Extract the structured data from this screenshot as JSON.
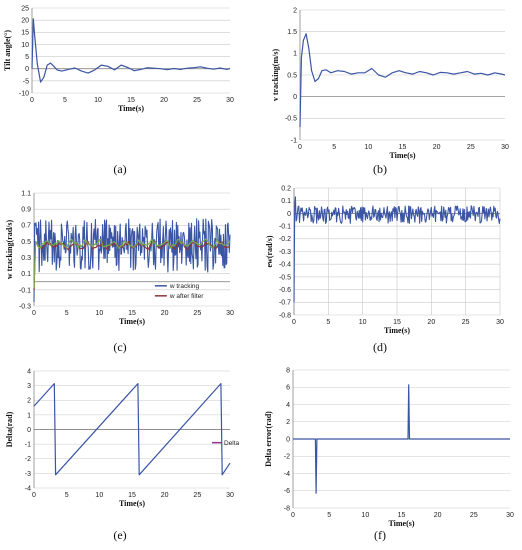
{
  "chart_data": [
    {
      "id": "a",
      "type": "line",
      "caption": "(a)",
      "xlabel": "Time(s)",
      "ylabel": "Tilt angle(°)",
      "xlim": [
        0,
        30
      ],
      "ylim": [
        -10,
        25
      ],
      "xticks": [
        0,
        5,
        10,
        15,
        20,
        25,
        30
      ],
      "yticks": [
        -10,
        -5,
        0,
        5,
        10,
        15,
        20,
        25
      ],
      "grid": "horizontal",
      "series": [
        {
          "color": "#3a55a4",
          "x": [
            0,
            0.2,
            0.4,
            0.8,
            1.3,
            1.8,
            2.3,
            2.8,
            3.3,
            3.8,
            4.5,
            5.5,
            6.5,
            7.5,
            8.5,
            9.5,
            10.5,
            11.5,
            12.5,
            13.5,
            14.5,
            15.5,
            16.5,
            17.5,
            18.5,
            19.5,
            20.5,
            21.5,
            22.5,
            23.5,
            24.5,
            25.5,
            26.5,
            27.5,
            28.5,
            29.5,
            30
          ],
          "y": [
            0,
            20.5,
            14,
            2,
            -5.5,
            -3.5,
            1.5,
            2.3,
            1,
            -0.5,
            -1,
            -0.3,
            0.3,
            -1,
            -1.8,
            -0.5,
            1.5,
            1,
            -0.5,
            1.5,
            0.5,
            -0.8,
            -0.3,
            0.4,
            0.2,
            0,
            -0.4,
            0.1,
            -0.3,
            0.2,
            0.4,
            0.8,
            0.2,
            -0.2,
            0.3,
            -0.3,
            0.1
          ]
        }
      ]
    },
    {
      "id": "b",
      "type": "line",
      "caption": "(b)",
      "xlabel": "Time(s)",
      "ylabel": "v tracking(m/s)",
      "xlim": [
        0,
        30
      ],
      "ylim": [
        -1,
        2
      ],
      "xticks": [
        0,
        5,
        10,
        15,
        20,
        25,
        30
      ],
      "yticks": [
        -1,
        -0.5,
        0,
        0.5,
        1,
        1.5,
        2
      ],
      "grid": "horizontal",
      "series": [
        {
          "color": "#3a55a4",
          "x": [
            0,
            0.2,
            0.5,
            0.9,
            1.3,
            1.7,
            2.2,
            2.7,
            3.2,
            3.8,
            4.5,
            5.5,
            6.5,
            7.5,
            8.5,
            9.5,
            10.5,
            11.5,
            12.5,
            13.5,
            14.5,
            15.5,
            16.5,
            17.5,
            18.5,
            19.5,
            20.5,
            21.5,
            22.5,
            23.5,
            24.5,
            25.5,
            26.5,
            27.5,
            28.5,
            29.5,
            30
          ],
          "y": [
            -0.7,
            0.9,
            1.3,
            1.45,
            1.1,
            0.6,
            0.35,
            0.42,
            0.6,
            0.62,
            0.55,
            0.6,
            0.58,
            0.52,
            0.55,
            0.55,
            0.65,
            0.5,
            0.45,
            0.55,
            0.6,
            0.55,
            0.52,
            0.58,
            0.55,
            0.5,
            0.56,
            0.55,
            0.52,
            0.55,
            0.58,
            0.52,
            0.54,
            0.5,
            0.55,
            0.52,
            0.5
          ]
        }
      ]
    },
    {
      "id": "c",
      "type": "line",
      "caption": "(c)",
      "xlabel": "Time(s)",
      "ylabel": "w tracking(rad/s)",
      "xlim": [
        0,
        30
      ],
      "ylim": [
        -0.3,
        1.1
      ],
      "xticks": [
        0,
        5,
        10,
        15,
        20,
        25,
        30
      ],
      "yticks": [
        -0.3,
        -0.1,
        0.1,
        0.3,
        0.5,
        0.7,
        0.9,
        1.1
      ],
      "grid": "horizontal",
      "legend": "inside-bottom-right",
      "series": [
        {
          "name": "w tracking",
          "color": "#3a55a4",
          "style": "noisy",
          "center": 0.45,
          "amplitude": 0.33,
          "spike": [
            -0.25,
            0.7
          ]
        },
        {
          "name": "w after filter",
          "color": "#8e3535",
          "style": "filter",
          "center": 0.45,
          "amplitude": 0.05
        },
        {
          "name": "",
          "color": "#79a84a",
          "style": "smooth",
          "center": 0.47,
          "amplitude": 0.06
        }
      ]
    },
    {
      "id": "d",
      "type": "line",
      "caption": "(d)",
      "xlabel": "Time(s)",
      "ylabel": "ew(rad/s)",
      "xlim": [
        0,
        30
      ],
      "ylim": [
        -0.8,
        0.2
      ],
      "xticks": [
        0,
        5,
        10,
        15,
        20,
        25,
        30
      ],
      "yticks": [
        -0.8,
        -0.7,
        -0.6,
        -0.5,
        -0.4,
        -0.3,
        -0.2,
        -0.1,
        0,
        0.1,
        0.2
      ],
      "grid": "both",
      "series": [
        {
          "color": "#3a55a4",
          "style": "noisy",
          "center": -0.01,
          "amplitude": 0.07,
          "spike": [
            -0.7,
            0.13
          ]
        }
      ]
    },
    {
      "id": "e",
      "type": "line",
      "caption": "(e)",
      "xlabel": "Time(s)",
      "ylabel": "Delta(rad)",
      "xlim": [
        0,
        30
      ],
      "ylim": [
        -4,
        4
      ],
      "xticks": [
        0,
        5,
        10,
        15,
        20,
        25,
        30
      ],
      "yticks": [
        -4,
        -3,
        -2,
        -1,
        0,
        1,
        2,
        3,
        4
      ],
      "grid": "horizontal",
      "legend": "right",
      "series": [
        {
          "name": "Delta",
          "color": "#3a55a4",
          "legendColor": "#8e3590",
          "x": [
            0,
            3.1,
            3.3,
            15.9,
            16.1,
            28.6,
            28.8,
            30
          ],
          "y": [
            1.6,
            3.14,
            -3.1,
            3.14,
            -3.1,
            3.14,
            -3.1,
            -2.3
          ]
        }
      ]
    },
    {
      "id": "f",
      "type": "line",
      "caption": "(f)",
      "xlabel": "Time(s)",
      "ylabel": "Delta error(rad)",
      "xlim": [
        0,
        30
      ],
      "ylim": [
        -8,
        8
      ],
      "xticks": [
        0,
        5,
        10,
        15,
        20,
        25,
        30
      ],
      "yticks": [
        -8,
        -6,
        -4,
        -2,
        0,
        2,
        4,
        6,
        8
      ],
      "grid": "horizontal",
      "series": [
        {
          "color": "#3a55a4",
          "x": [
            0,
            3.1,
            3.2,
            3.3,
            15.9,
            16.0,
            16.1,
            30
          ],
          "y": [
            0,
            0,
            -6.28,
            0,
            0,
            6.28,
            0,
            0
          ]
        }
      ]
    }
  ]
}
